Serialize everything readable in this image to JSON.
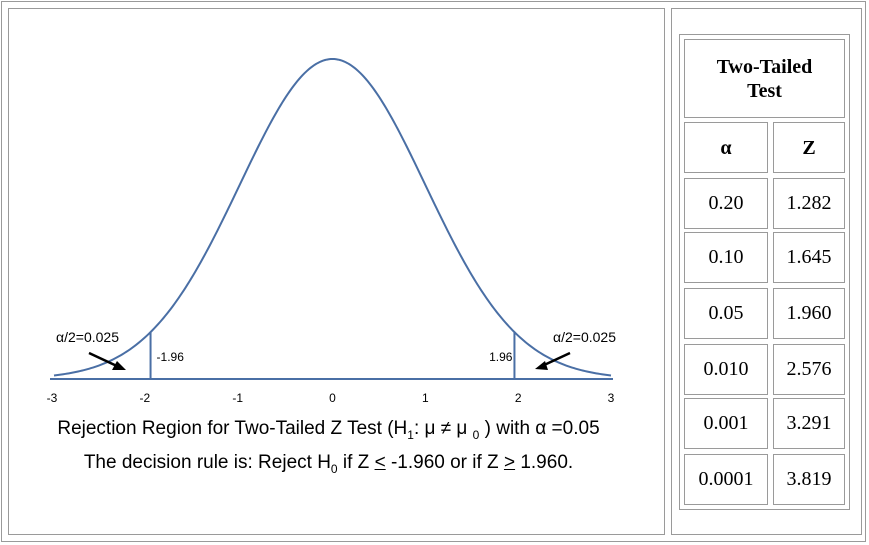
{
  "chart_data": {
    "type": "area",
    "title": "",
    "xlabel": "",
    "ylabel": "",
    "xlim": [
      -3,
      3
    ],
    "x_ticks": [
      "-3",
      "-2",
      "-1",
      "0",
      "1",
      "2",
      "3"
    ],
    "critical_values": [
      -1.96,
      1.96
    ],
    "critical_labels": [
      "-1.96",
      "1.96"
    ],
    "tail_labels": [
      "α/2=0.025",
      "α/2=0.025"
    ],
    "line_color": "#4a6fa5",
    "grid": false
  },
  "caption": {
    "line1_prefix": "Rejection Region for Two-Tailed Z Test (H",
    "line1_sub1": "1",
    "line1_middle": ": μ ≠ μ",
    "line1_sub2": "0",
    "line1_suffix": ") with α =0.05",
    "line2_prefix": "The decision rule is: Reject H",
    "line2_sub": "0",
    "line2_mid1": " if Z ",
    "line2_le": "<",
    "line2_mid2": " -1.960 or if Z ",
    "line2_ge": ">",
    "line2_suffix": " 1.960."
  },
  "table": {
    "title": "Two-Tailed Test",
    "headers": [
      "α",
      "Z"
    ],
    "rows": [
      [
        "0.20",
        "1.282"
      ],
      [
        "0.10",
        "1.645"
      ],
      [
        "0.05",
        "1.960"
      ],
      [
        "0.010",
        "2.576"
      ],
      [
        "0.001",
        "3.291"
      ],
      [
        "0.0001",
        "3.819"
      ]
    ]
  }
}
